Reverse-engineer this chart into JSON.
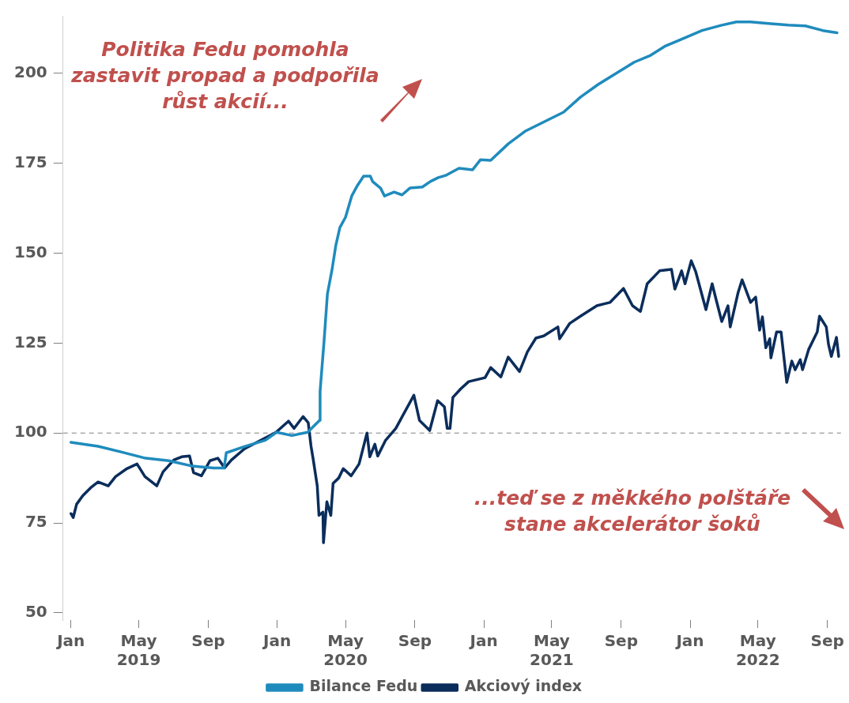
{
  "chart_data": {
    "type": "line",
    "annotations": [
      "Politika Fedu pomohla zastavit propad a podpořila růst akcií...",
      "...teď se z měkkého polštáře stane akcelerátor šoků"
    ],
    "xlim": [
      "2018-12-18",
      "2022-09-25"
    ],
    "xticks": [
      {
        "value": "2019-01-01",
        "label": "Jan"
      },
      {
        "value": "2019-05-01",
        "label": "May\n2019"
      },
      {
        "value": "2019-09-01",
        "label": "Sep"
      },
      {
        "value": "2020-01-01",
        "label": "Jan"
      },
      {
        "value": "2020-05-01",
        "label": "May\n2020"
      },
      {
        "value": "2020-09-01",
        "label": "Sep"
      },
      {
        "value": "2021-01-01",
        "label": "Jan"
      },
      {
        "value": "2021-05-01",
        "label": "May\n2021"
      },
      {
        "value": "2021-09-01",
        "label": "Sep"
      },
      {
        "value": "2022-01-01",
        "label": "Jan"
      },
      {
        "value": "2022-05-01",
        "label": "May\n2022"
      },
      {
        "value": "2022-09-01",
        "label": "Sep"
      }
    ],
    "ylim": [
      48,
      216
    ],
    "yticks": [
      50,
      75,
      100,
      125,
      150,
      175,
      200
    ],
    "grid": false,
    "legend": "bottom",
    "marker": "none",
    "line_style": "solid",
    "ref_lines": [
      {
        "axis": "y",
        "value": 100,
        "color": "#808080",
        "line_style": "dashed"
      }
    ],
    "series": [
      {
        "name": "Bilance Fedu",
        "color": "#1f8bbd",
        "x": [
          "2019-01-01",
          "2019-02-18",
          "2019-04-01",
          "2019-05-13",
          "2019-06-23",
          "2019-08-04",
          "2019-09-11",
          "2019-09-29",
          "2019-10-03",
          "2019-11-05",
          "2019-12-11",
          "2019-12-31",
          "2020-01-27",
          "2020-02-24",
          "2020-03-16",
          "2020-03-17",
          "2020-03-24",
          "2020-03-30",
          "2020-04-07",
          "2020-04-14",
          "2020-04-21",
          "2020-05-01",
          "2020-05-12",
          "2020-05-22",
          "2020-06-02",
          "2020-06-14",
          "2020-06-18",
          "2020-07-02",
          "2020-07-09",
          "2020-07-26",
          "2020-08-09",
          "2020-08-23",
          "2020-09-14",
          "2020-09-28",
          "2020-10-12",
          "2020-10-25",
          "2020-11-18",
          "2020-12-12",
          "2020-12-26",
          "2021-01-13",
          "2021-02-13",
          "2021-03-16",
          "2021-04-21",
          "2021-05-22",
          "2021-06-21",
          "2021-07-22",
          "2021-08-21",
          "2021-09-24",
          "2021-10-23",
          "2021-11-17",
          "2021-12-17",
          "2022-01-22",
          "2022-02-26",
          "2022-03-24",
          "2022-04-18",
          "2022-05-24",
          "2022-06-24",
          "2022-07-24",
          "2022-08-24",
          "2022-09-18"
        ],
        "values": [
          97.4,
          96.3,
          94.7,
          93,
          92.3,
          90.8,
          90.3,
          90.3,
          94.5,
          96.3,
          98,
          100.2,
          99.3,
          100.2,
          103.5,
          111.6,
          125.5,
          138.7,
          145.3,
          152.3,
          157.1,
          160,
          165.9,
          168.8,
          171.4,
          171.4,
          169.9,
          168.1,
          165.9,
          167,
          166.2,
          168.1,
          168.4,
          169.9,
          171,
          171.6,
          173.6,
          173.2,
          176,
          175.8,
          180.4,
          184,
          186.8,
          189.2,
          193.4,
          196.9,
          199.8,
          203.1,
          205,
          207.5,
          209.5,
          211.9,
          213.4,
          214.3,
          214.3,
          213.8,
          213.4,
          213.2,
          211.9,
          211.3
        ]
      },
      {
        "name": "Akciový index",
        "color": "#0b2d5b",
        "x": [
          "2019-01-01",
          "2019-01-05",
          "2019-01-11",
          "2019-01-22",
          "2019-02-05",
          "2019-02-18",
          "2019-03-08",
          "2019-03-21",
          "2019-04-10",
          "2019-04-28",
          "2019-05-12",
          "2019-06-02",
          "2019-06-13",
          "2019-07-02",
          "2019-07-16",
          "2019-07-30",
          "2019-08-06",
          "2019-08-20",
          "2019-09-04",
          "2019-09-18",
          "2019-09-30",
          "2019-10-12",
          "2019-11-04",
          "2019-11-26",
          "2019-12-30",
          "2020-01-21",
          "2020-01-31",
          "2020-02-16",
          "2020-02-25",
          "2020-03-01",
          "2020-03-05",
          "2020-03-12",
          "2020-03-15",
          "2020-03-22",
          "2020-03-23",
          "2020-03-29",
          "2020-04-05",
          "2020-04-09",
          "2020-04-19",
          "2020-04-27",
          "2020-05-11",
          "2020-05-25",
          "2020-06-08",
          "2020-06-13",
          "2020-06-22",
          "2020-06-27",
          "2020-07-11",
          "2020-07-29",
          "2020-08-30",
          "2020-09-09",
          "2020-09-27",
          "2020-10-11",
          "2020-10-23",
          "2020-10-28",
          "2020-11-02",
          "2020-11-07",
          "2020-11-21",
          "2020-12-05",
          "2021-01-03",
          "2021-01-13",
          "2021-01-31",
          "2021-02-13",
          "2021-03-05",
          "2021-03-19",
          "2021-04-03",
          "2021-04-17",
          "2021-05-12",
          "2021-05-15",
          "2021-06-02",
          "2021-06-21",
          "2021-07-20",
          "2021-08-12",
          "2021-09-05",
          "2021-09-21",
          "2021-10-05",
          "2021-10-17",
          "2021-11-08",
          "2021-11-29",
          "2021-12-05",
          "2021-12-17",
          "2021-12-23",
          "2022-01-03",
          "2022-01-11",
          "2022-01-29",
          "2022-02-09",
          "2022-02-16",
          "2022-02-26",
          "2022-03-09",
          "2022-03-13",
          "2022-03-27",
          "2022-04-03",
          "2022-04-18",
          "2022-04-27",
          "2022-05-04",
          "2022-05-09",
          "2022-05-15",
          "2022-05-22",
          "2022-05-24",
          "2022-06-03",
          "2022-06-11",
          "2022-06-21",
          "2022-06-30",
          "2022-07-06",
          "2022-07-15",
          "2022-07-19",
          "2022-07-30",
          "2022-08-14",
          "2022-08-18",
          "2022-08-30",
          "2022-09-03",
          "2022-09-08",
          "2022-09-17",
          "2022-09-21"
        ],
        "values": [
          77.6,
          76.5,
          80.2,
          82.6,
          84.8,
          86.4,
          85.3,
          87.9,
          90.1,
          91.4,
          87.9,
          85.3,
          89.2,
          92.5,
          93.4,
          93.6,
          89,
          88.1,
          92.3,
          93,
          90.3,
          92.5,
          95.6,
          97.4,
          100.2,
          103.3,
          101.3,
          104.6,
          102.9,
          96.3,
          92.5,
          85.3,
          77.1,
          78,
          69.5,
          80.9,
          77.1,
          86,
          87.5,
          90.1,
          88.1,
          91.4,
          100,
          93.4,
          96.9,
          93.6,
          98,
          101.3,
          110.5,
          103.5,
          100.7,
          109,
          107.3,
          101.3,
          101.3,
          109.9,
          112.3,
          114.3,
          115.4,
          118.2,
          115.6,
          121.1,
          117.1,
          122.6,
          126.4,
          127,
          129.5,
          126.2,
          130.5,
          132.5,
          135.4,
          136.3,
          140.2,
          135.4,
          133.8,
          141.5,
          145.1,
          145.5,
          140,
          145.1,
          141.5,
          147.9,
          144.8,
          134.3,
          141.5,
          137.1,
          131,
          135.4,
          129.5,
          139.1,
          142.6,
          136.3,
          137.8,
          128.6,
          132.3,
          123.7,
          126.2,
          120.9,
          128.1,
          128.1,
          114.1,
          120,
          117.6,
          120.4,
          117.6,
          123.3,
          128.1,
          132.5,
          129.5,
          124.6,
          121.3,
          126.6,
          121.3
        ]
      }
    ]
  }
}
